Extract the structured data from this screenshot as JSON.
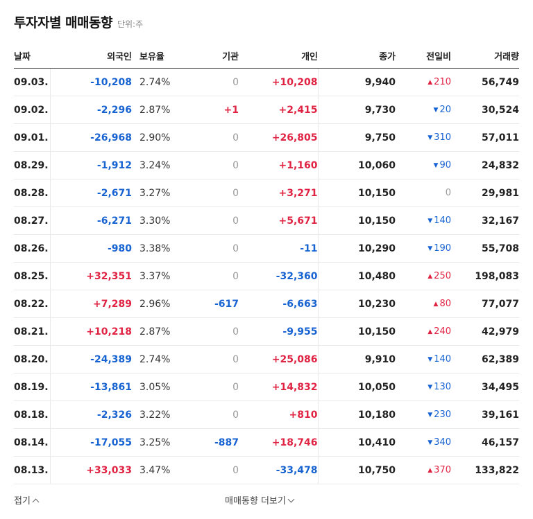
{
  "header": {
    "title": "투자자별 매매동향",
    "unit": "단위:주"
  },
  "columns": [
    "날짜",
    "외국인",
    "보유율",
    "기관",
    "개인",
    "종가",
    "전일비",
    "거래량"
  ],
  "rows": [
    {
      "date": "09.03.",
      "foreign": "-10,208",
      "rate": "2.74%",
      "inst": "0",
      "indiv": "+10,208",
      "close": "9,940",
      "change": "210",
      "change_dir": "up",
      "volume": "56,749"
    },
    {
      "date": "09.02.",
      "foreign": "-2,296",
      "rate": "2.87%",
      "inst": "+1",
      "indiv": "+2,415",
      "close": "9,730",
      "change": "20",
      "change_dir": "down",
      "volume": "30,524"
    },
    {
      "date": "09.01.",
      "foreign": "-26,968",
      "rate": "2.90%",
      "inst": "0",
      "indiv": "+26,805",
      "close": "9,750",
      "change": "310",
      "change_dir": "down",
      "volume": "57,011"
    },
    {
      "date": "08.29.",
      "foreign": "-1,912",
      "rate": "3.24%",
      "inst": "0",
      "indiv": "+1,160",
      "close": "10,060",
      "change": "90",
      "change_dir": "down",
      "volume": "24,832"
    },
    {
      "date": "08.28.",
      "foreign": "-2,671",
      "rate": "3.27%",
      "inst": "0",
      "indiv": "+3,271",
      "close": "10,150",
      "change": "0",
      "change_dir": "flat",
      "volume": "29,981"
    },
    {
      "date": "08.27.",
      "foreign": "-6,271",
      "rate": "3.30%",
      "inst": "0",
      "indiv": "+5,671",
      "close": "10,150",
      "change": "140",
      "change_dir": "down",
      "volume": "32,167"
    },
    {
      "date": "08.26.",
      "foreign": "-980",
      "rate": "3.38%",
      "inst": "0",
      "indiv": "-11",
      "close": "10,290",
      "change": "190",
      "change_dir": "down",
      "volume": "55,708"
    },
    {
      "date": "08.25.",
      "foreign": "+32,351",
      "rate": "3.37%",
      "inst": "0",
      "indiv": "-32,360",
      "close": "10,480",
      "change": "250",
      "change_dir": "up",
      "volume": "198,083"
    },
    {
      "date": "08.22.",
      "foreign": "+7,289",
      "rate": "2.96%",
      "inst": "-617",
      "indiv": "-6,663",
      "close": "10,230",
      "change": "80",
      "change_dir": "up",
      "volume": "77,077"
    },
    {
      "date": "08.21.",
      "foreign": "+10,218",
      "rate": "2.87%",
      "inst": "0",
      "indiv": "-9,955",
      "close": "10,150",
      "change": "240",
      "change_dir": "up",
      "volume": "42,979"
    },
    {
      "date": "08.20.",
      "foreign": "-24,389",
      "rate": "2.74%",
      "inst": "0",
      "indiv": "+25,086",
      "close": "9,910",
      "change": "140",
      "change_dir": "down",
      "volume": "62,389"
    },
    {
      "date": "08.19.",
      "foreign": "-13,861",
      "rate": "3.05%",
      "inst": "0",
      "indiv": "+14,832",
      "close": "10,050",
      "change": "130",
      "change_dir": "down",
      "volume": "34,495"
    },
    {
      "date": "08.18.",
      "foreign": "-2,326",
      "rate": "3.22%",
      "inst": "0",
      "indiv": "+810",
      "close": "10,180",
      "change": "230",
      "change_dir": "down",
      "volume": "39,161"
    },
    {
      "date": "08.14.",
      "foreign": "-17,055",
      "rate": "3.25%",
      "inst": "-887",
      "indiv": "+18,746",
      "close": "10,410",
      "change": "340",
      "change_dir": "down",
      "volume": "46,157"
    },
    {
      "date": "08.13.",
      "foreign": "+33,033",
      "rate": "3.47%",
      "inst": "0",
      "indiv": "-33,478",
      "close": "10,750",
      "change": "370",
      "change_dir": "up",
      "volume": "133,822"
    }
  ],
  "footer": {
    "fold_label": "접기",
    "more_label": "매매동향 더보기"
  },
  "colors": {
    "up": "#e12343",
    "down": "#1763d2",
    "zero": "#999999"
  },
  "icons": {
    "up": "▲",
    "down": "▼",
    "fold": "chevron-up-icon",
    "more": "chevron-down-icon"
  }
}
